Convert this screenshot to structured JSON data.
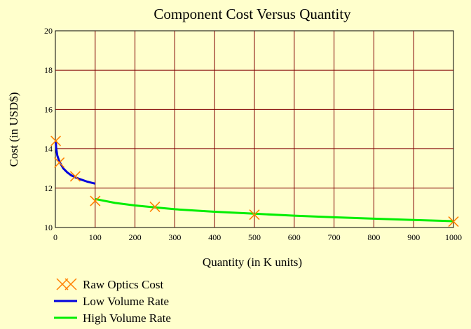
{
  "chart_data": {
    "type": "line",
    "title": "Component Cost Versus Quantity",
    "xlabel": "Quantity (in K units)",
    "ylabel": "Cost (in USD$)",
    "xlim": [
      0,
      1000
    ],
    "ylim": [
      10,
      20
    ],
    "x_ticks": [
      "0",
      "100",
      "200",
      "300",
      "400",
      "500",
      "600",
      "700",
      "800",
      "900",
      "1000"
    ],
    "y_ticks": [
      "10",
      "12",
      "14",
      "16",
      "18",
      "20"
    ],
    "grid": true,
    "legend_position": "bottom-left",
    "colors": {
      "background": "#ffffcc",
      "grid": "#800000",
      "raw": "#ff8000",
      "low": "#0000dd",
      "high": "#00ee00"
    },
    "series": [
      {
        "name": "Raw Optics Cost",
        "style": "markers-x",
        "points": [
          [
            1,
            14.4
          ],
          [
            10,
            13.3
          ],
          [
            50,
            12.6
          ],
          [
            100,
            11.35
          ],
          [
            250,
            11.05
          ],
          [
            500,
            10.65
          ],
          [
            1000,
            10.3
          ]
        ]
      },
      {
        "name": "Low Volume Rate",
        "style": "line",
        "points": [
          [
            1,
            14.4
          ],
          [
            2,
            14.05
          ],
          [
            5,
            13.65
          ],
          [
            10,
            13.35
          ],
          [
            20,
            13.0
          ],
          [
            30,
            12.8
          ],
          [
            40,
            12.65
          ],
          [
            50,
            12.55
          ],
          [
            60,
            12.47
          ],
          [
            70,
            12.4
          ],
          [
            80,
            12.33
          ],
          [
            90,
            12.28
          ],
          [
            100,
            12.23
          ]
        ]
      },
      {
        "name": "High Volume Rate",
        "style": "line",
        "points": [
          [
            100,
            11.45
          ],
          [
            150,
            11.25
          ],
          [
            200,
            11.12
          ],
          [
            250,
            11.02
          ],
          [
            300,
            10.93
          ],
          [
            350,
            10.86
          ],
          [
            400,
            10.8
          ],
          [
            450,
            10.75
          ],
          [
            500,
            10.7
          ],
          [
            600,
            10.6
          ],
          [
            700,
            10.52
          ],
          [
            800,
            10.45
          ],
          [
            900,
            10.38
          ],
          [
            1000,
            10.32
          ]
        ]
      }
    ]
  }
}
